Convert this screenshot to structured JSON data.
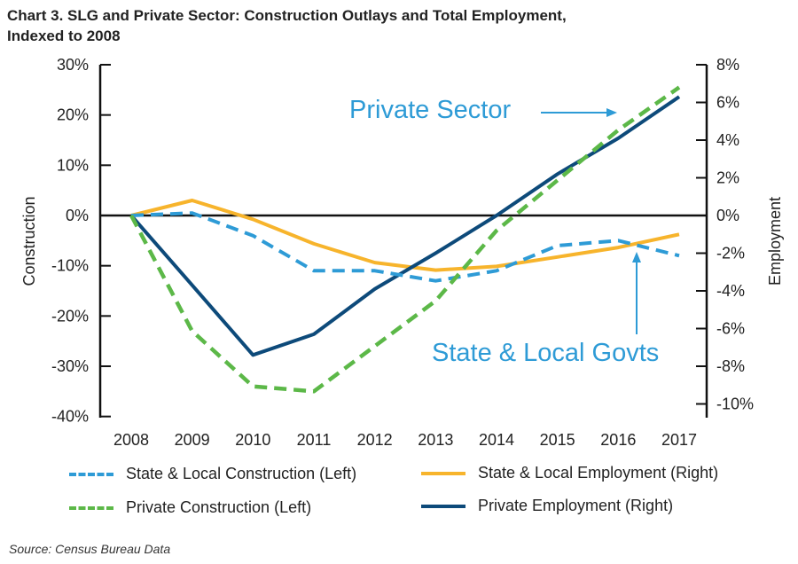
{
  "title_line1": "Chart 3. SLG and Private Sector: Construction Outlays and Total Employment,",
  "title_line2": "Indexed to 2008",
  "source": "Source: Census Bureau Data",
  "chart_data": {
    "type": "line",
    "title": "Chart 3. SLG and Private Sector: Construction Outlays and Total Employment, Indexed to 2008",
    "x": [
      "2008",
      "2009",
      "2010",
      "2011",
      "2012",
      "2013",
      "2014",
      "2015",
      "2016",
      "2017"
    ],
    "xlabel": "",
    "y_left": {
      "label": "Construction",
      "lim": [
        -40,
        30
      ],
      "ticks": [
        30,
        20,
        10,
        0,
        -10,
        -20,
        -30,
        -40
      ],
      "tick_labels": [
        "30%",
        "20%",
        "10%",
        "0%",
        "-10%",
        "-20%",
        "-30%",
        "-40%"
      ]
    },
    "y_right": {
      "label": "Employment",
      "lim": [
        -10,
        8
      ],
      "ticks": [
        8,
        6,
        4,
        2,
        0,
        -2,
        -4,
        -6,
        -8,
        -10
      ],
      "tick_labels": [
        "8%",
        "6%",
        "4%",
        "2%",
        "0%",
        "-2%",
        "-4%",
        "-6%",
        "-8%",
        "-10%"
      ]
    },
    "series": [
      {
        "name": "State & Local Construction (Left)",
        "axis": "left",
        "style": "dashed",
        "color": "#2e9bd6",
        "values": [
          0,
          0.5,
          -4,
          -11,
          -11,
          -13,
          -11,
          -6,
          -5,
          -8
        ]
      },
      {
        "name": "State & Local Employment (Right)",
        "axis": "right",
        "style": "solid",
        "color": "#f7b42c",
        "values": [
          0,
          0.8,
          -0.2,
          -1.5,
          -2.5,
          -2.9,
          -2.7,
          -2.2,
          -1.7,
          -1
        ]
      },
      {
        "name": "Private Construction (Left)",
        "axis": "left",
        "style": "dashed",
        "color": "#5cb848",
        "values": [
          0,
          -23,
          -34,
          -35,
          -26,
          -17,
          -3,
          7,
          17,
          25.5
        ]
      },
      {
        "name": "Private Employment (Right)",
        "axis": "right",
        "style": "solid",
        "color": "#0d4a7a",
        "values": [
          0,
          -3.7,
          -7.4,
          -6.3,
          -3.9,
          -2,
          0,
          2.2,
          4.1,
          6.3
        ]
      }
    ],
    "annotations": [
      {
        "text": "Private Sector",
        "color": "#2e9bd6",
        "points_to": "Private Employment (Right)"
      },
      {
        "text": "State & Local Govts",
        "color": "#2e9bd6",
        "points_to": "State & Local Employment (Right)"
      }
    ],
    "legend_placement": "bottom"
  }
}
